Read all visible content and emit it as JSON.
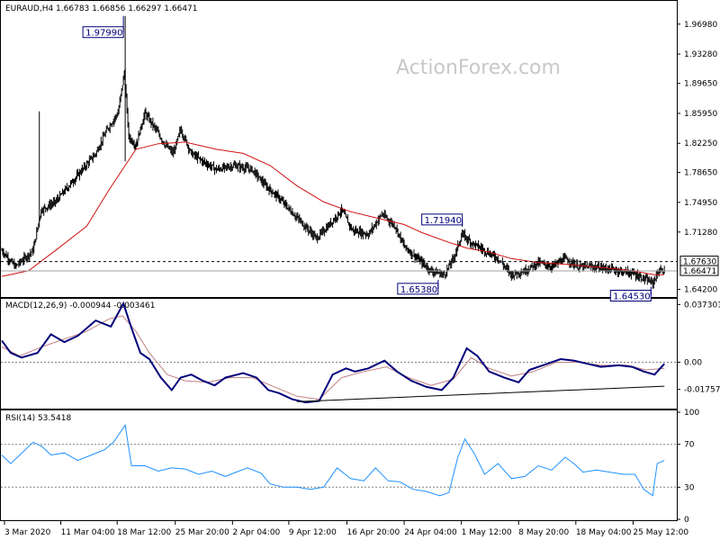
{
  "chart_data": {
    "type": "candlestick",
    "colors": {
      "price": "#000000",
      "ma": "#d01010",
      "macd": "#00007a",
      "signal": "#c08080",
      "rsi": "#1e90ff",
      "trendline": "#000000",
      "box_border": "#00007a",
      "box_text": "#00007a",
      "grid_dash": "#808080"
    },
    "price_panel": {
      "title": "EURAUD,H4  1.66783 1.66856 1.66297 1.66471",
      "watermark": "ActionForex.com",
      "y_ticks": [
        1.9698,
        1.9328,
        1.8965,
        1.8595,
        1.8225,
        1.7865,
        1.7495,
        1.7128,
        1.642
      ],
      "y_tick_labels": [
        "1.96980",
        "1.93280",
        "1.89650",
        "1.85950",
        "1.82250",
        "1.78650",
        "1.74950",
        "1.71280",
        "1.64200"
      ],
      "last_price": "1.66471",
      "level_line": "1.67630",
      "annotations": [
        {
          "text": "1.97990",
          "price": 1.9799,
          "bar": 136
        },
        {
          "text": "1.71940",
          "price": 1.7194,
          "bar": 515
        },
        {
          "text": "1.65380",
          "price": 1.6538,
          "bar": 488
        },
        {
          "text": "1.64530",
          "price": 1.6453,
          "bar": 726
        }
      ],
      "close_path": [
        [
          0,
          1.69
        ],
        [
          15,
          1.67
        ],
        [
          35,
          1.69
        ],
        [
          44,
          1.74
        ],
        [
          60,
          1.75
        ],
        [
          75,
          1.77
        ],
        [
          90,
          1.79
        ],
        [
          105,
          1.81
        ],
        [
          118,
          1.84
        ],
        [
          130,
          1.86
        ],
        [
          137,
          1.91
        ],
        [
          142,
          1.83
        ],
        [
          150,
          1.82
        ],
        [
          160,
          1.86
        ],
        [
          172,
          1.84
        ],
        [
          183,
          1.82
        ],
        [
          192,
          1.81
        ],
        [
          200,
          1.84
        ],
        [
          212,
          1.81
        ],
        [
          225,
          1.8
        ],
        [
          240,
          1.79
        ],
        [
          260,
          1.795
        ],
        [
          280,
          1.79
        ],
        [
          295,
          1.77
        ],
        [
          310,
          1.755
        ],
        [
          322,
          1.74
        ],
        [
          335,
          1.725
        ],
        [
          352,
          1.705
        ],
        [
          365,
          1.72
        ],
        [
          380,
          1.74
        ],
        [
          392,
          1.715
        ],
        [
          410,
          1.71
        ],
        [
          425,
          1.735
        ],
        [
          440,
          1.72
        ],
        [
          450,
          1.695
        ],
        [
          465,
          1.68
        ],
        [
          480,
          1.665
        ],
        [
          495,
          1.66
        ],
        [
          505,
          1.68
        ],
        [
          515,
          1.71
        ],
        [
          525,
          1.7
        ],
        [
          540,
          1.69
        ],
        [
          555,
          1.68
        ],
        [
          570,
          1.66
        ],
        [
          585,
          1.665
        ],
        [
          600,
          1.675
        ],
        [
          615,
          1.67
        ],
        [
          630,
          1.68
        ],
        [
          645,
          1.67
        ],
        [
          660,
          1.67
        ],
        [
          675,
          1.668
        ],
        [
          690,
          1.665
        ],
        [
          705,
          1.662
        ],
        [
          718,
          1.655
        ],
        [
          728,
          1.65
        ],
        [
          735,
          1.665
        ],
        [
          741,
          1.665
        ]
      ],
      "ma_path": [
        [
          0,
          1.658
        ],
        [
          30,
          1.665
        ],
        [
          60,
          1.69
        ],
        [
          95,
          1.72
        ],
        [
          120,
          1.765
        ],
        [
          135,
          1.79
        ],
        [
          150,
          1.815
        ],
        [
          175,
          1.822
        ],
        [
          205,
          1.824
        ],
        [
          240,
          1.815
        ],
        [
          270,
          1.81
        ],
        [
          300,
          1.795
        ],
        [
          330,
          1.77
        ],
        [
          360,
          1.75
        ],
        [
          390,
          1.738
        ],
        [
          420,
          1.73
        ],
        [
          450,
          1.722
        ],
        [
          470,
          1.712
        ],
        [
          500,
          1.7
        ],
        [
          520,
          1.693
        ],
        [
          545,
          1.688
        ],
        [
          570,
          1.68
        ],
        [
          600,
          1.675
        ],
        [
          630,
          1.673
        ],
        [
          660,
          1.67
        ],
        [
          690,
          1.667
        ],
        [
          715,
          1.663
        ],
        [
          730,
          1.66
        ],
        [
          741,
          1.66
        ]
      ],
      "price_range": [
        1.6325,
        1.9985
      ]
    },
    "macd_panel": {
      "title": "MACD(12,26,9) -0.000944 -0.003461",
      "y_ticks": [
        0.037301,
        0.0,
        -0.017577
      ],
      "y_tick_labels": [
        "0.037301",
        "0.00",
        "-0.017577"
      ],
      "macd_path": [
        [
          0,
          0.014
        ],
        [
          10,
          0.006
        ],
        [
          22,
          0.003
        ],
        [
          40,
          0.006
        ],
        [
          55,
          0.018
        ],
        [
          70,
          0.013
        ],
        [
          85,
          0.017
        ],
        [
          105,
          0.027
        ],
        [
          122,
          0.023
        ],
        [
          136,
          0.038
        ],
        [
          145,
          0.022
        ],
        [
          155,
          0.006
        ],
        [
          165,
          0.002
        ],
        [
          178,
          -0.01
        ],
        [
          190,
          -0.018
        ],
        [
          200,
          -0.01
        ],
        [
          212,
          -0.008
        ],
        [
          225,
          -0.012
        ],
        [
          238,
          -0.015
        ],
        [
          250,
          -0.01
        ],
        [
          270,
          -0.007
        ],
        [
          285,
          -0.01
        ],
        [
          298,
          -0.018
        ],
        [
          310,
          -0.02
        ],
        [
          325,
          -0.024
        ],
        [
          340,
          -0.026
        ],
        [
          355,
          -0.025
        ],
        [
          370,
          -0.008
        ],
        [
          385,
          -0.004
        ],
        [
          395,
          -0.006
        ],
        [
          410,
          -0.004
        ],
        [
          428,
          0.001
        ],
        [
          442,
          -0.006
        ],
        [
          458,
          -0.012
        ],
        [
          475,
          -0.016
        ],
        [
          492,
          -0.018
        ],
        [
          505,
          -0.01
        ],
        [
          520,
          0.009
        ],
        [
          532,
          0.004
        ],
        [
          545,
          -0.006
        ],
        [
          562,
          -0.01
        ],
        [
          578,
          -0.013
        ],
        [
          590,
          -0.005
        ],
        [
          605,
          -0.002
        ],
        [
          625,
          0.002
        ],
        [
          640,
          0.001
        ],
        [
          655,
          -0.001
        ],
        [
          670,
          -0.003
        ],
        [
          690,
          -0.002
        ],
        [
          705,
          -0.003
        ],
        [
          718,
          -0.006
        ],
        [
          730,
          -0.008
        ],
        [
          741,
          -0.001
        ]
      ],
      "signal_path": [
        [
          0,
          0.01
        ],
        [
          20,
          0.004
        ],
        [
          45,
          0.01
        ],
        [
          70,
          0.015
        ],
        [
          95,
          0.02
        ],
        [
          120,
          0.028
        ],
        [
          135,
          0.03
        ],
        [
          150,
          0.02
        ],
        [
          165,
          0.006
        ],
        [
          185,
          -0.008
        ],
        [
          205,
          -0.012
        ],
        [
          230,
          -0.013
        ],
        [
          255,
          -0.01
        ],
        [
          280,
          -0.01
        ],
        [
          305,
          -0.016
        ],
        [
          330,
          -0.022
        ],
        [
          355,
          -0.024
        ],
        [
          380,
          -0.01
        ],
        [
          405,
          -0.006
        ],
        [
          430,
          -0.003
        ],
        [
          455,
          -0.01
        ],
        [
          480,
          -0.015
        ],
        [
          505,
          -0.011
        ],
        [
          525,
          0.003
        ],
        [
          545,
          -0.004
        ],
        [
          570,
          -0.009
        ],
        [
          595,
          -0.006
        ],
        [
          620,
          0.0
        ],
        [
          645,
          0.0
        ],
        [
          670,
          -0.002
        ],
        [
          700,
          -0.002
        ],
        [
          720,
          -0.005
        ],
        [
          741,
          -0.004
        ]
      ],
      "trendline": [
        [
          330,
          -0.0255
        ],
        [
          741,
          -0.0155
        ]
      ],
      "range": [
        -0.03,
        0.041
      ]
    },
    "rsi_panel": {
      "title": "RSI(14) 53.5418",
      "y_ticks": [
        100,
        70,
        30,
        0
      ],
      "y_tick_labels": [
        "100",
        "70",
        "30",
        "0"
      ],
      "levels": [
        70,
        30
      ],
      "rsi_path": [
        [
          0,
          60
        ],
        [
          10,
          52
        ],
        [
          20,
          60
        ],
        [
          35,
          72
        ],
        [
          45,
          68
        ],
        [
          55,
          60
        ],
        [
          70,
          62
        ],
        [
          85,
          55
        ],
        [
          100,
          60
        ],
        [
          115,
          65
        ],
        [
          125,
          72
        ],
        [
          138,
          88
        ],
        [
          145,
          50
        ],
        [
          160,
          50
        ],
        [
          175,
          45
        ],
        [
          190,
          48
        ],
        [
          205,
          47
        ],
        [
          220,
          42
        ],
        [
          235,
          45
        ],
        [
          250,
          40
        ],
        [
          262,
          44
        ],
        [
          275,
          48
        ],
        [
          290,
          43
        ],
        [
          300,
          33
        ],
        [
          315,
          30
        ],
        [
          330,
          30
        ],
        [
          345,
          28
        ],
        [
          360,
          30
        ],
        [
          375,
          48
        ],
        [
          390,
          38
        ],
        [
          405,
          36
        ],
        [
          418,
          48
        ],
        [
          432,
          36
        ],
        [
          445,
          35
        ],
        [
          460,
          28
        ],
        [
          475,
          26
        ],
        [
          490,
          22
        ],
        [
          500,
          25
        ],
        [
          510,
          58
        ],
        [
          518,
          75
        ],
        [
          528,
          62
        ],
        [
          540,
          42
        ],
        [
          555,
          52
        ],
        [
          570,
          38
        ],
        [
          585,
          40
        ],
        [
          600,
          50
        ],
        [
          615,
          46
        ],
        [
          630,
          58
        ],
        [
          640,
          52
        ],
        [
          650,
          44
        ],
        [
          665,
          46
        ],
        [
          680,
          44
        ],
        [
          695,
          42
        ],
        [
          708,
          42
        ],
        [
          718,
          28
        ],
        [
          728,
          22
        ],
        [
          733,
          52
        ],
        [
          741,
          55
        ]
      ],
      "range": [
        0,
        100
      ]
    },
    "x_axis": {
      "ticks": [
        {
          "bar": 3,
          "label": "3 Mar 2020"
        },
        {
          "bar": 66,
          "label": "11 Mar 04:00"
        },
        {
          "bar": 129,
          "label": "18 Mar 12:00"
        },
        {
          "bar": 194,
          "label": "25 Mar 20:00"
        },
        {
          "bar": 258,
          "label": "2 Apr 04:00"
        },
        {
          "bar": 321,
          "label": "9 Apr 12:00"
        },
        {
          "bar": 386,
          "label": "16 Apr 20:00"
        },
        {
          "bar": 450,
          "label": "24 Apr 04:00"
        },
        {
          "bar": 514,
          "label": "1 May 12:00"
        },
        {
          "bar": 578,
          "label": "8 May 20:00"
        },
        {
          "bar": 642,
          "label": "18 May 04:00"
        },
        {
          "bar": 706,
          "label": "25 May 12:00"
        }
      ]
    }
  }
}
